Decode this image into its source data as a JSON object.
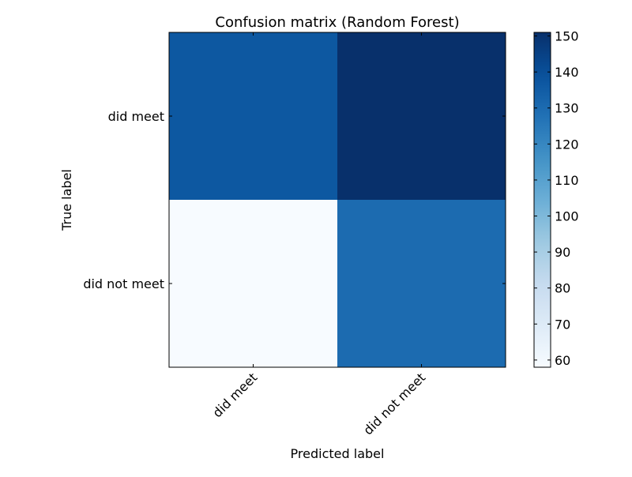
{
  "chart_data": {
    "type": "heatmap",
    "title": "Confusion matrix (Random Forest)",
    "xlabel": "Predicted label",
    "ylabel": "True label",
    "x_categories": [
      "did meet",
      "did not meet"
    ],
    "y_categories": [
      "did meet",
      "did not meet"
    ],
    "values": [
      [
        137,
        151
      ],
      [
        58,
        130
      ]
    ],
    "colormap": "Blues",
    "colorbar": {
      "range": [
        58,
        151
      ],
      "ticks": [
        60,
        70,
        80,
        90,
        100,
        110,
        120,
        130,
        140,
        150
      ]
    },
    "x_tick_rotation_deg": 45,
    "grid": false
  }
}
